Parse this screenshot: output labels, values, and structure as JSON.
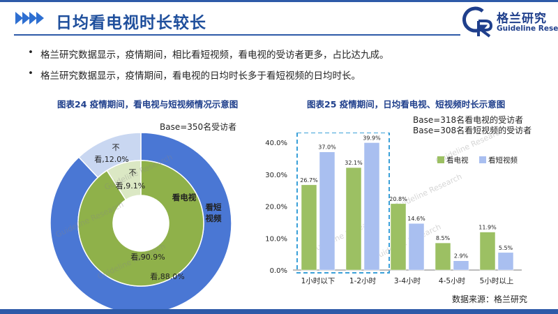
{
  "header": {
    "title": "日均看电视时长较长",
    "logo": {
      "cn": "格兰研究",
      "en": "Guideline Research",
      "mark": "GR"
    }
  },
  "bullets": [
    "格兰研究数据显示，疫情期间，相比看短视频，看电视的受访者更多，占比达九成。",
    "格兰研究数据显示，疫情期间，看电视的日均时长多于看短视频的日均时长。"
  ],
  "watermark": "Guideline Research",
  "source": "数据来源：格兰研究",
  "chart_data": [
    {
      "type": "pie",
      "title": "图表24 疫情期间，看电视与短视频情况示意图",
      "base_note": "Base=350名受访者",
      "rings": [
        {
          "name": "看短视频",
          "slices": [
            {
              "label": "看",
              "value": 88.0,
              "text": "看,88.0%"
            },
            {
              "label": "不看",
              "value": 12.0,
              "text": "看,12.0%",
              "prefix": "不"
            }
          ]
        },
        {
          "name": "看电视",
          "slices": [
            {
              "label": "看",
              "value": 90.9,
              "text": "看,90.9%"
            },
            {
              "label": "不看",
              "value": 9.1,
              "text": "看,9.1%",
              "prefix": "不"
            }
          ]
        }
      ],
      "colors": {
        "outer": "#4a77d4",
        "outer_light": "#c9d7f1",
        "inner": "#8fb14a",
        "inner_light": "#dbe8c4"
      }
    },
    {
      "type": "bar",
      "title": "图表25 疫情期间，日均看电视、短视频时长示意图",
      "base_notes": [
        "Base=318名看电视的受访者",
        "Base=308名看短视频的受访者"
      ],
      "categories": [
        "1小时以下",
        "1-2小时",
        "3-4小时",
        "4-5小时",
        "5小时以上"
      ],
      "series": [
        {
          "name": "看电视",
          "values": [
            26.7,
            32.1,
            20.8,
            8.5,
            11.9
          ],
          "labels": [
            "26.7%",
            "32.1%",
            "20.8%",
            "8.5%",
            "11.9%"
          ],
          "color": "#9cc063"
        },
        {
          "name": "看短视频",
          "values": [
            37.0,
            39.9,
            14.6,
            2.9,
            5.5
          ],
          "labels": [
            "37.0%",
            "39.9%",
            "14.6%",
            "2.9%",
            "5.5%"
          ],
          "color": "#a9bff0"
        }
      ],
      "ylim": [
        0,
        40
      ],
      "yticks": [
        "0.0%",
        "10.0%",
        "20.0%",
        "30.0%",
        "40.0%"
      ],
      "legend": "right",
      "highlight": "dashed box around 1小时以下 and 1-2小时"
    }
  ]
}
